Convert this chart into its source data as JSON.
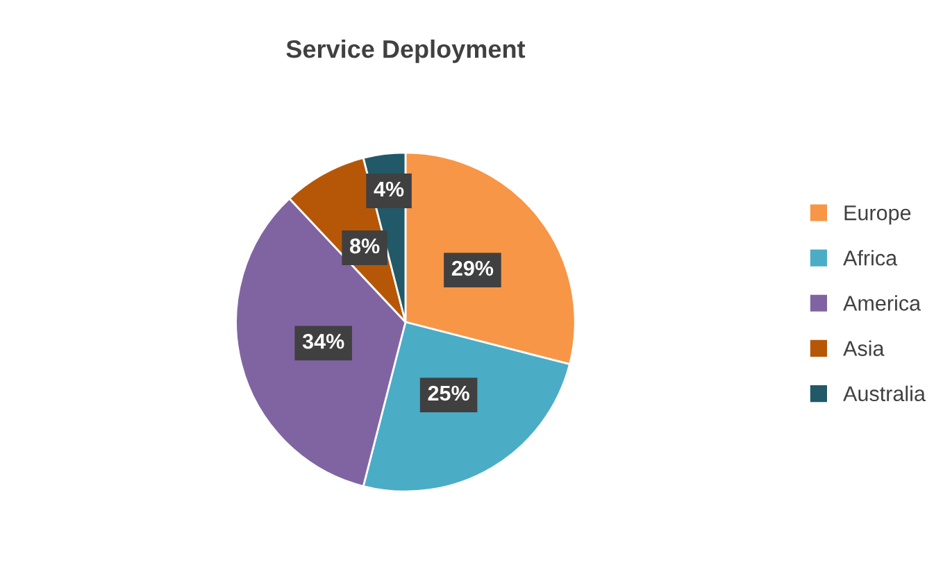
{
  "chart_data": {
    "type": "pie",
    "title": "Service Deployment",
    "categories": [
      "Europe",
      "Africa",
      "America",
      "Asia",
      "Australia"
    ],
    "values": [
      29,
      25,
      34,
      8,
      4
    ],
    "colors": [
      "#f79646",
      "#4bacc6",
      "#8064a2",
      "#b65708",
      "#215968"
    ],
    "value_labels": [
      "29%",
      "25%",
      "34%",
      "8%",
      "4%"
    ],
    "legend": "right"
  }
}
